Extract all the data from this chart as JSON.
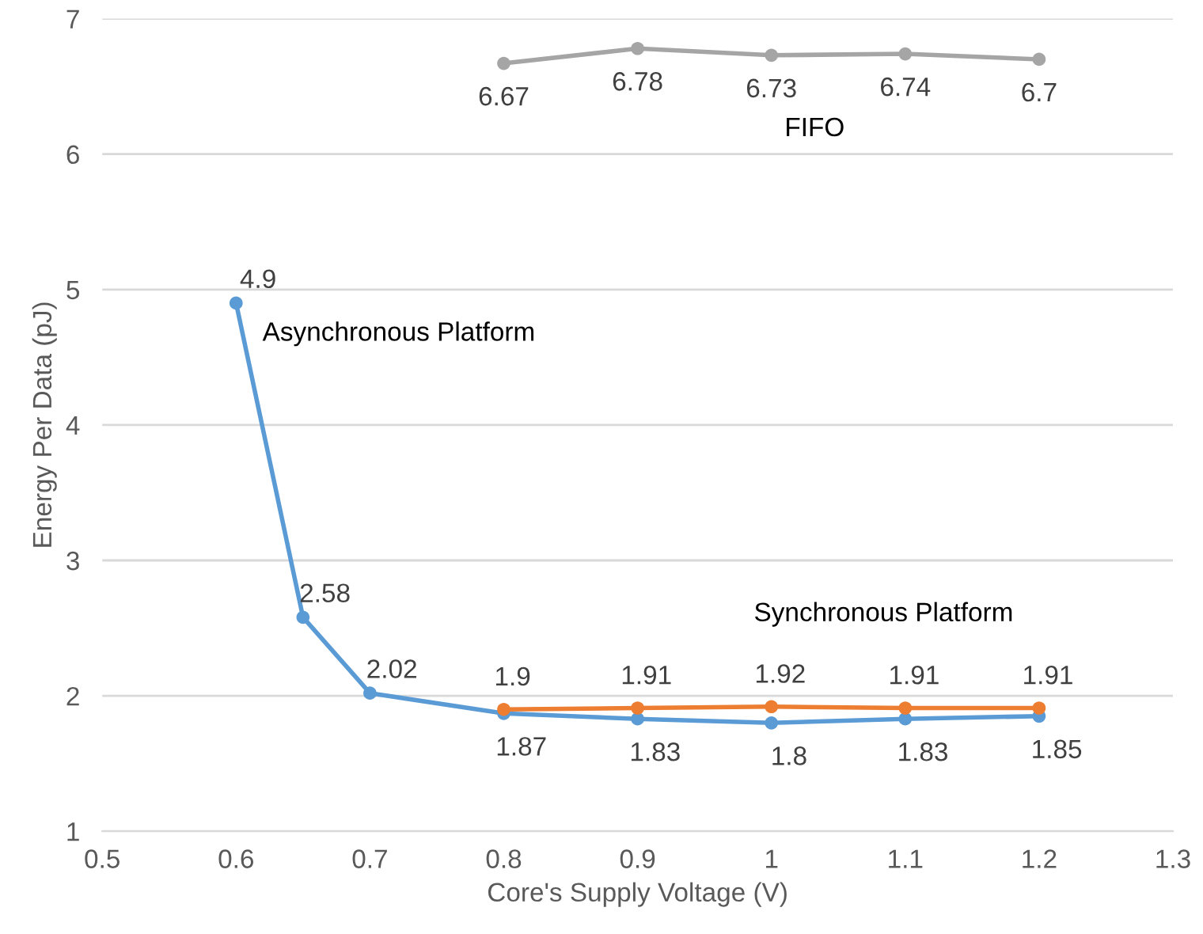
{
  "chart_data": {
    "type": "line",
    "xlabel": "Core's Supply Voltage (V)",
    "ylabel": "Energy Per Data (pJ)",
    "series": [
      {
        "name": "Asynchronous Platform",
        "color": "#5b9bd5",
        "x": [
          0.6,
          0.65,
          0.7,
          0.8,
          0.9,
          1,
          1.1,
          1.2
        ],
        "values": [
          4.9,
          2.58,
          2.02,
          1.87,
          1.83,
          1.8,
          1.83,
          1.85
        ]
      },
      {
        "name": "Synchronous Platform",
        "color": "#ed7d31",
        "x": [
          0.8,
          0.9,
          1,
          1.1,
          1.2
        ],
        "values": [
          1.9,
          1.91,
          1.92,
          1.91,
          1.91
        ]
      },
      {
        "name": "FIFO",
        "color": "#a5a5a5",
        "x": [
          0.8,
          0.9,
          1,
          1.1,
          1.2
        ],
        "values": [
          6.67,
          6.78,
          6.73,
          6.74,
          6.7
        ]
      }
    ],
    "xlim": [
      0.5,
      1.3
    ],
    "xticks": [
      0.5,
      0.6,
      0.7,
      0.8,
      0.9,
      1,
      1.1,
      1.2,
      1.3
    ],
    "ylim": [
      1,
      7
    ],
    "yticks": [
      1,
      2,
      3,
      4,
      5,
      6,
      7
    ],
    "grid": "y",
    "legend": false,
    "marker": "circle",
    "line_style": "solid",
    "data_labels": true
  }
}
